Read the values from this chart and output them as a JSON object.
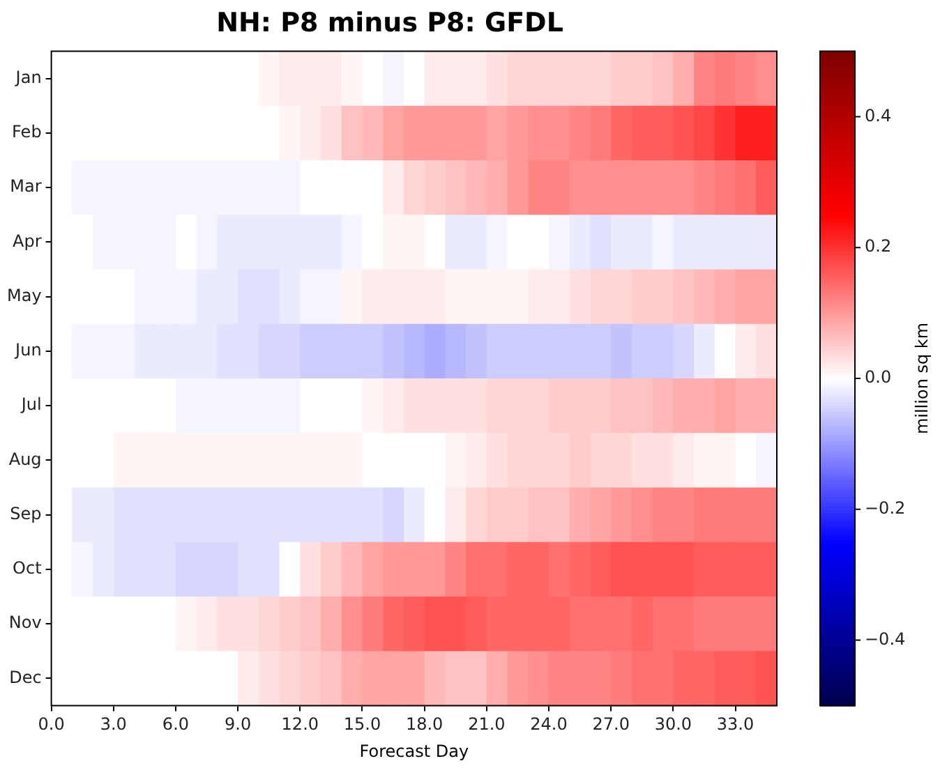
{
  "chart_data": {
    "type": "heatmap",
    "title": "NH: P8 minus P8: GFDL",
    "xlabel": "Forecast Day",
    "clabel": "million sq km",
    "x": [
      0.5,
      1.5,
      2.5,
      3.5,
      4.5,
      5.5,
      6.5,
      7.5,
      8.5,
      9.5,
      10.5,
      11.5,
      12.5,
      13.5,
      14.5,
      15.5,
      16.5,
      17.5,
      18.5,
      19.5,
      20.5,
      21.5,
      22.5,
      23.5,
      24.5,
      25.5,
      26.5,
      27.5,
      28.5,
      29.5,
      30.5,
      31.5,
      32.5,
      33.5,
      34.5
    ],
    "xlim": [
      0,
      35
    ],
    "xticks": [
      {
        "value": 0,
        "label": "0.0"
      },
      {
        "value": 3,
        "label": "3.0"
      },
      {
        "value": 6,
        "label": "6.0"
      },
      {
        "value": 9,
        "label": "9.0"
      },
      {
        "value": 12,
        "label": "12.0"
      },
      {
        "value": 15,
        "label": "15.0"
      },
      {
        "value": 18,
        "label": "18.0"
      },
      {
        "value": 21,
        "label": "21.0"
      },
      {
        "value": 24,
        "label": "24.0"
      },
      {
        "value": 27,
        "label": "27.0"
      },
      {
        "value": 30,
        "label": "30.0"
      },
      {
        "value": 33,
        "label": "33.0"
      }
    ],
    "y_categories": [
      "Jan",
      "Feb",
      "Mar",
      "Apr",
      "May",
      "Jun",
      "Jul",
      "Aug",
      "Sep",
      "Oct",
      "Nov",
      "Dec"
    ],
    "cells": [
      [
        0,
        0,
        0,
        0,
        0,
        0,
        0,
        0,
        0,
        0,
        0.01,
        0.02,
        0.02,
        0.02,
        0.01,
        0,
        -0.01,
        0,
        0.02,
        0.02,
        0.02,
        0.03,
        0.04,
        0.04,
        0.04,
        0.04,
        0.04,
        0.05,
        0.05,
        0.06,
        0.08,
        0.12,
        0.13,
        0.12,
        0.11
      ],
      [
        0,
        0,
        0,
        0,
        0,
        0,
        0,
        0,
        0,
        0,
        0,
        0.01,
        0.02,
        0.03,
        0.06,
        0.07,
        0.09,
        0.1,
        0.1,
        0.1,
        0.1,
        0.09,
        0.1,
        0.11,
        0.11,
        0.12,
        0.13,
        0.15,
        0.16,
        0.16,
        0.17,
        0.18,
        0.2,
        0.22,
        0.22
      ],
      [
        0,
        -0.01,
        -0.01,
        -0.01,
        -0.01,
        -0.01,
        -0.01,
        -0.01,
        -0.01,
        -0.01,
        -0.01,
        -0.01,
        0,
        0,
        0,
        0,
        0.02,
        0.04,
        0.05,
        0.06,
        0.07,
        0.08,
        0.1,
        0.12,
        0.12,
        0.11,
        0.11,
        0.11,
        0.11,
        0.11,
        0.11,
        0.12,
        0.13,
        0.14,
        0.16
      ],
      [
        0,
        0,
        -0.01,
        -0.01,
        -0.01,
        -0.01,
        0,
        -0.01,
        -0.02,
        -0.02,
        -0.02,
        -0.02,
        -0.02,
        -0.02,
        -0.01,
        0,
        0.01,
        0.01,
        0,
        -0.02,
        -0.02,
        -0.01,
        0,
        0,
        -0.01,
        -0.02,
        -0.03,
        -0.02,
        -0.02,
        -0.01,
        -0.02,
        -0.02,
        -0.02,
        -0.02,
        -0.02
      ],
      [
        0,
        0,
        0,
        0,
        -0.01,
        -0.01,
        -0.01,
        -0.02,
        -0.02,
        -0.03,
        -0.03,
        -0.02,
        -0.01,
        -0.01,
        0.01,
        0.02,
        0.02,
        0.02,
        0.02,
        0.01,
        0.01,
        0.01,
        0.01,
        0.02,
        0.02,
        0.03,
        0.04,
        0.04,
        0.05,
        0.05,
        0.06,
        0.07,
        0.08,
        0.09,
        0.09
      ],
      [
        0,
        -0.01,
        -0.01,
        -0.01,
        -0.02,
        -0.02,
        -0.02,
        -0.02,
        -0.03,
        -0.03,
        -0.04,
        -0.04,
        -0.05,
        -0.05,
        -0.05,
        -0.05,
        -0.06,
        -0.07,
        -0.08,
        -0.07,
        -0.06,
        -0.05,
        -0.05,
        -0.05,
        -0.05,
        -0.05,
        -0.05,
        -0.06,
        -0.05,
        -0.05,
        -0.04,
        -0.02,
        0,
        0.02,
        0.03
      ],
      [
        0,
        0,
        0,
        0,
        0,
        0,
        -0.01,
        -0.01,
        -0.01,
        -0.01,
        -0.01,
        -0.01,
        0,
        0,
        0,
        0.01,
        0.02,
        0.03,
        0.03,
        0.03,
        0.03,
        0.04,
        0.04,
        0.04,
        0.05,
        0.05,
        0.05,
        0.06,
        0.06,
        0.07,
        0.08,
        0.08,
        0.09,
        0.08,
        0.08
      ],
      [
        0,
        0,
        0,
        0.01,
        0.01,
        0.01,
        0.01,
        0.01,
        0.01,
        0.01,
        0.01,
        0.01,
        0.01,
        0.01,
        0.01,
        0,
        0,
        0,
        0,
        0.01,
        0.02,
        0.03,
        0.04,
        0.04,
        0.04,
        0.05,
        0.04,
        0.04,
        0.03,
        0.03,
        0.02,
        0.01,
        0.01,
        0,
        -0.01
      ],
      [
        0,
        -0.02,
        -0.02,
        -0.03,
        -0.03,
        -0.03,
        -0.03,
        -0.03,
        -0.03,
        -0.03,
        -0.03,
        -0.03,
        -0.03,
        -0.03,
        -0.03,
        -0.03,
        -0.04,
        -0.02,
        0,
        0.02,
        0.04,
        0.05,
        0.05,
        0.06,
        0.06,
        0.08,
        0.09,
        0.1,
        0.11,
        0.12,
        0.12,
        0.13,
        0.13,
        0.13,
        0.13
      ],
      [
        0,
        -0.01,
        -0.02,
        -0.03,
        -0.03,
        -0.03,
        -0.04,
        -0.04,
        -0.04,
        -0.03,
        -0.03,
        0,
        0.03,
        0.05,
        0.07,
        0.09,
        0.1,
        0.1,
        0.1,
        0.12,
        0.14,
        0.14,
        0.15,
        0.15,
        0.14,
        0.15,
        0.16,
        0.17,
        0.17,
        0.17,
        0.17,
        0.16,
        0.16,
        0.16,
        0.16
      ],
      [
        0,
        0,
        0,
        0,
        0,
        0,
        0.01,
        0.02,
        0.03,
        0.03,
        0.04,
        0.05,
        0.06,
        0.08,
        0.11,
        0.13,
        0.15,
        0.16,
        0.17,
        0.17,
        0.16,
        0.15,
        0.15,
        0.15,
        0.15,
        0.14,
        0.14,
        0.14,
        0.15,
        0.14,
        0.14,
        0.13,
        0.13,
        0.13,
        0.13
      ],
      [
        0,
        0,
        0,
        0,
        0,
        0,
        0,
        0,
        0,
        0.02,
        0.03,
        0.04,
        0.05,
        0.06,
        0.08,
        0.09,
        0.09,
        0.09,
        0.07,
        0.06,
        0.06,
        0.08,
        0.1,
        0.11,
        0.12,
        0.12,
        0.12,
        0.13,
        0.14,
        0.14,
        0.15,
        0.15,
        0.16,
        0.16,
        0.17
      ]
    ],
    "clim": [
      -0.5,
      0.5
    ],
    "cticks": [
      {
        "value": -0.4,
        "label": "−0.4"
      },
      {
        "value": -0.2,
        "label": "−0.2"
      },
      {
        "value": 0,
        "label": "0.0"
      },
      {
        "value": 0.2,
        "label": "0.2"
      },
      {
        "value": 0.4,
        "label": "0.4"
      }
    ],
    "ylabel": null
  }
}
